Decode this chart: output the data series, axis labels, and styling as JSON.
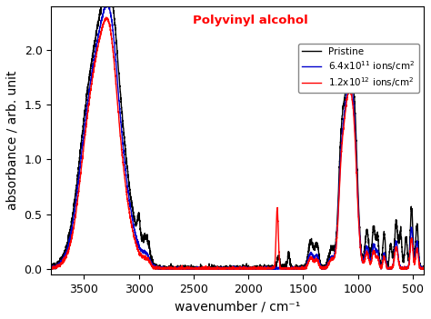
{
  "title": "Polyvinyl alcohol",
  "title_color": "#ff0000",
  "xlabel": "wavenumber / cm⁻¹",
  "ylabel": "absorbance / arb. unit",
  "xlim": [
    3800,
    400
  ],
  "ylim": [
    -0.05,
    2.4
  ],
  "xticks": [
    3500,
    3000,
    2500,
    2000,
    1500,
    1000,
    500
  ],
  "yticks": [
    0.0,
    0.5,
    1.0,
    1.5,
    2.0
  ],
  "legend": [
    {
      "label": "Pristine",
      "color": "#000000"
    },
    {
      "label": "6.4x10$^{11}$ ions/cm$^2$",
      "color": "#0000cc"
    },
    {
      "label": "1.2x10$^{12}$ ions/cm$^2$",
      "color": "#ff0000"
    }
  ],
  "background_color": "#ffffff",
  "line_width": 1.0
}
